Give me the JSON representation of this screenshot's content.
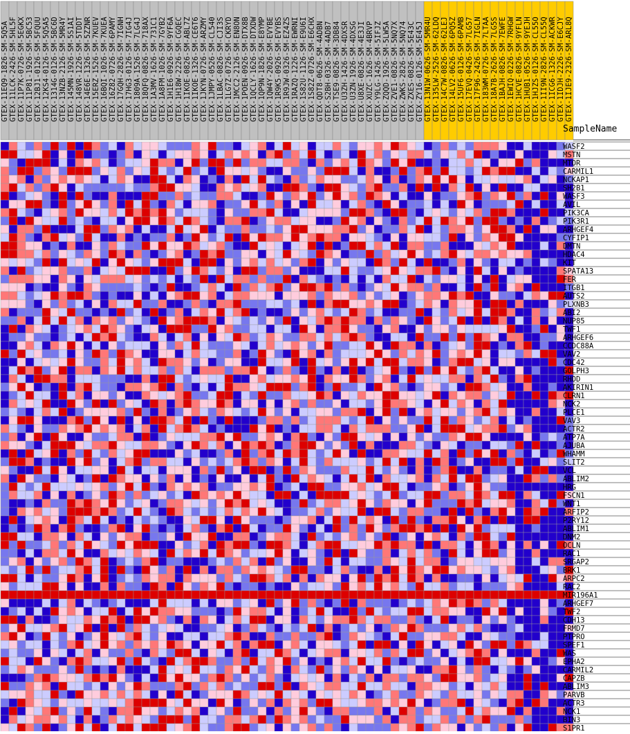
{
  "chart_data": {
    "type": "heatmap",
    "corner_label": "SampleName",
    "columns": [
      {
        "name": "GTEX-11EQ9-1826-SM-5Q5A",
        "group": "A"
      },
      {
        "name": "GTEX-11LCK-2426-SM-5HL5F",
        "group": "A"
      },
      {
        "name": "GTEX-11P7K-0726-SM-5EGKX",
        "group": "A"
      },
      {
        "name": "GTEX-11P81-1926-SM-5BC53",
        "group": "A"
      },
      {
        "name": "GTEX-12BJ1-0126-SM-5FQUU",
        "group": "A"
      },
      {
        "name": "GTEX-12KS4-0126-SM-5Q5A5",
        "group": "A"
      },
      {
        "name": "GTEX-1314G-0126-SM-5BC6D",
        "group": "A"
      },
      {
        "name": "GTEX-13NZB-2126-SM-5MR4Y",
        "group": "A"
      },
      {
        "name": "GTEX-145MN-1926-SM-5S1AI",
        "group": "A"
      },
      {
        "name": "GTEX-148VR-1226-SM-5TDDT",
        "group": "A"
      },
      {
        "name": "GTEX-14E6E-1326-SM-5ZZNR",
        "group": "A"
      },
      {
        "name": "GTEX-15ERZ-1526-SM-7KUEV",
        "group": "A"
      },
      {
        "name": "GTEX-16BQI-1026-SM-7KUEA",
        "group": "A"
      },
      {
        "name": "GTEX-16Z82-0726-SM-6PAMY",
        "group": "A"
      },
      {
        "name": "GTEX-17GQH-2826-SM-7IGNH",
        "group": "A"
      },
      {
        "name": "GTEX-17HG3-0126-SM-7IG4J",
        "group": "A"
      },
      {
        "name": "GTEX-1809A-1526-SM-7LG4J",
        "group": "A"
      },
      {
        "name": "GTEX-18QFQ-0826-SM-718AX",
        "group": "A"
      },
      {
        "name": "GTEX-1A3MV-1626-SM-731C1",
        "group": "A"
      },
      {
        "name": "GTEX-1A8FM-1026-SM-7GYB2",
        "group": "A"
      },
      {
        "name": "GTEX-1H1E6-0926-SM-9YF6A",
        "group": "A"
      },
      {
        "name": "GTEX-1H18W-2226-SM-CGQEC",
        "group": "A"
      },
      {
        "name": "GTEX-1IKOE-0826-SM-ABL7Z",
        "group": "A"
      },
      {
        "name": "GTEX-1IKOE-1326-SM-CE6T6",
        "group": "A"
      },
      {
        "name": "GTEX-1JKYN-0726-SM-ARZMY",
        "group": "A"
      },
      {
        "name": "GTEX-1JMPY-0526-SM-CL540",
        "group": "A"
      },
      {
        "name": "GTEX-1LBAC-0826-SM-CJI3S",
        "group": "A"
      },
      {
        "name": "GTEX-1LG7Z-0726-SM-CKRYD",
        "group": "A"
      },
      {
        "name": "GTEX-1MCC2-2126-SM-EN8ON",
        "group": "A"
      },
      {
        "name": "GTEX-1POEN-0926-SM-DTX8B",
        "group": "A"
      },
      {
        "name": "GTEX-1QCLY-1626-SM-DTXDW",
        "group": "A"
      },
      {
        "name": "GTEX-1QP9N-1826-SM-E8YMP",
        "group": "A"
      },
      {
        "name": "GTEX-1QW4Y-2026-SM-EVYBE",
        "group": "A"
      },
      {
        "name": "GTEX-1R9K5-0926-SM-EVYBS",
        "group": "A"
      },
      {
        "name": "GTEX-1R9JW-0326-SM-EZ4ZS",
        "group": "A"
      },
      {
        "name": "GTEX-1RAZQ-1226-SM-EWRNI",
        "group": "A"
      },
      {
        "name": "GTEX-1S82U-1126-SM-E9U6I",
        "group": "A"
      },
      {
        "name": "GTEX-1S82Z-0726-SM-E6CHX",
        "group": "A"
      },
      {
        "name": "GTEX-QDT8-0626-SM-4ADBN",
        "group": "A"
      },
      {
        "name": "GTEX-S2BH-0326-SM-4ADB7",
        "group": "A"
      },
      {
        "name": "GTEX-TSE9-0826-SM-3DB84",
        "group": "A"
      },
      {
        "name": "GTEX-U3ZH-1426-SM-4DXSR",
        "group": "A"
      },
      {
        "name": "GTEX-U3ZN-1926-SM-4DXSG",
        "group": "A"
      },
      {
        "name": "GTEX-U8XE-0826-SM-4E3JI",
        "group": "A"
      },
      {
        "name": "GTEX-XUZC-1626-SM-4BRVP",
        "group": "A"
      },
      {
        "name": "GTEX-Y9LG-1426-SM-5IFJZ",
        "group": "A"
      },
      {
        "name": "GTEX-ZQQD-1926-SM-5LW5A",
        "group": "A"
      },
      {
        "name": "GTEX-ZVE1-0826-SM-5NQ7X",
        "group": "A"
      },
      {
        "name": "GTEX-ZWKS-2826-SM-5NQ74",
        "group": "A"
      },
      {
        "name": "GTEX-ZXES-0826-SM-5E43C",
        "group": "A"
      },
      {
        "name": "GTEX-ZY16-0126-SM-5E45J",
        "group": "A"
      },
      {
        "name": "GTEX-13N1W-0626-SM-5MR4U",
        "group": "B"
      },
      {
        "name": "GTEX-135LW-2526-SM-62LDQ",
        "group": "B"
      },
      {
        "name": "GTEX-14C7W-0826-SM-62LEJ",
        "group": "B"
      },
      {
        "name": "GTEX-14LV2-0626-SM-6PQ5Z",
        "group": "B"
      },
      {
        "name": "GTEX-15UF6-0126-SM-6PAMB",
        "group": "B"
      },
      {
        "name": "GTEX-17EVQ-0426-SM-7LG57",
        "group": "B"
      },
      {
        "name": "GTEX-17F96-2426-SM-7IGLN",
        "group": "B"
      },
      {
        "name": "GTEX-183WM-0726-SM-7LTAA",
        "group": "B"
      },
      {
        "name": "GTEX-18A7B-2626-SM-7LG5S",
        "group": "B"
      },
      {
        "name": "GTEX-1BAJH-0826-SM-7EWFE",
        "group": "B"
      },
      {
        "name": "GTEX-1EWIQ-0226-SM-7RHGW",
        "group": "B"
      },
      {
        "name": "GTEX-1HCVE-0826-SM-9YFLN",
        "group": "B"
      },
      {
        "name": "GTEX-1HUB1-0526-SM-9YEJH",
        "group": "B"
      },
      {
        "name": "GTEX-1HJZS-0126-SM-CL55O",
        "group": "B"
      },
      {
        "name": "GTEX-1II9N-2826-SM-CL55Q",
        "group": "B"
      },
      {
        "name": "GTEX-1ICG6-1326-SM-ACKWR",
        "group": "B"
      },
      {
        "name": "GTEX-1IDJH-2226-SM-E6CJY",
        "group": "B"
      },
      {
        "name": "GTEX-1IJE9-2326-SM-ARL8Q",
        "group": "B"
      }
    ],
    "rows": [
      "WASF2",
      "MSTN",
      "MTOR",
      "CARMIL1",
      "NCKAP1",
      "SH2B1",
      "WASF3",
      "AVIL",
      "PIK3CA",
      "PIK3R1",
      "ARHGEF4",
      "CYFIP1",
      "DMTN",
      "HDAC4",
      "KIT",
      "SPATA13",
      "FER",
      "ITGB1",
      "AUTS2",
      "PLXNB3",
      "ABI2",
      "NUP85",
      "TWF1",
      "ARHGEF6",
      "CCDC88A",
      "VAV2",
      "CDC42",
      "GOLPH3",
      "RHOD",
      "AKIRIN1",
      "CLRN1",
      "NCK2",
      "PLCE1",
      "VAV3",
      "ACTR2",
      "ATP7A",
      "AJUBA",
      "WHAMM",
      "SLIT2",
      "VCL",
      "ABLIM2",
      "HRG",
      "FSCN1",
      "WNT1",
      "ARFIP2",
      "P2RY12",
      "ABLIM1",
      "DNM2",
      "OCLN",
      "RAC1",
      "SRGAP2",
      "BRK1",
      "ARPC2",
      "RAC2",
      "MIR196A1",
      "ARHGEF7",
      "TWF2",
      "CDH13",
      "FRMD7",
      "PTPRO",
      "SPEF1",
      "WAS",
      "EPHA2",
      "CARMIL2",
      "CAPZB",
      "ABLIM3",
      "PARVB",
      "ACTR3",
      "NCK1",
      "BIN3",
      "S1PR1"
    ],
    "group_colors": {
      "A": "#c0c0c0",
      "B": "#ffcc00"
    },
    "color_scale": [
      "#2200cc",
      "#7777ee",
      "#ccccff",
      "#ffccdd",
      "#ff7777",
      "#dd0000"
    ],
    "value_range": [
      0,
      5
    ]
  }
}
